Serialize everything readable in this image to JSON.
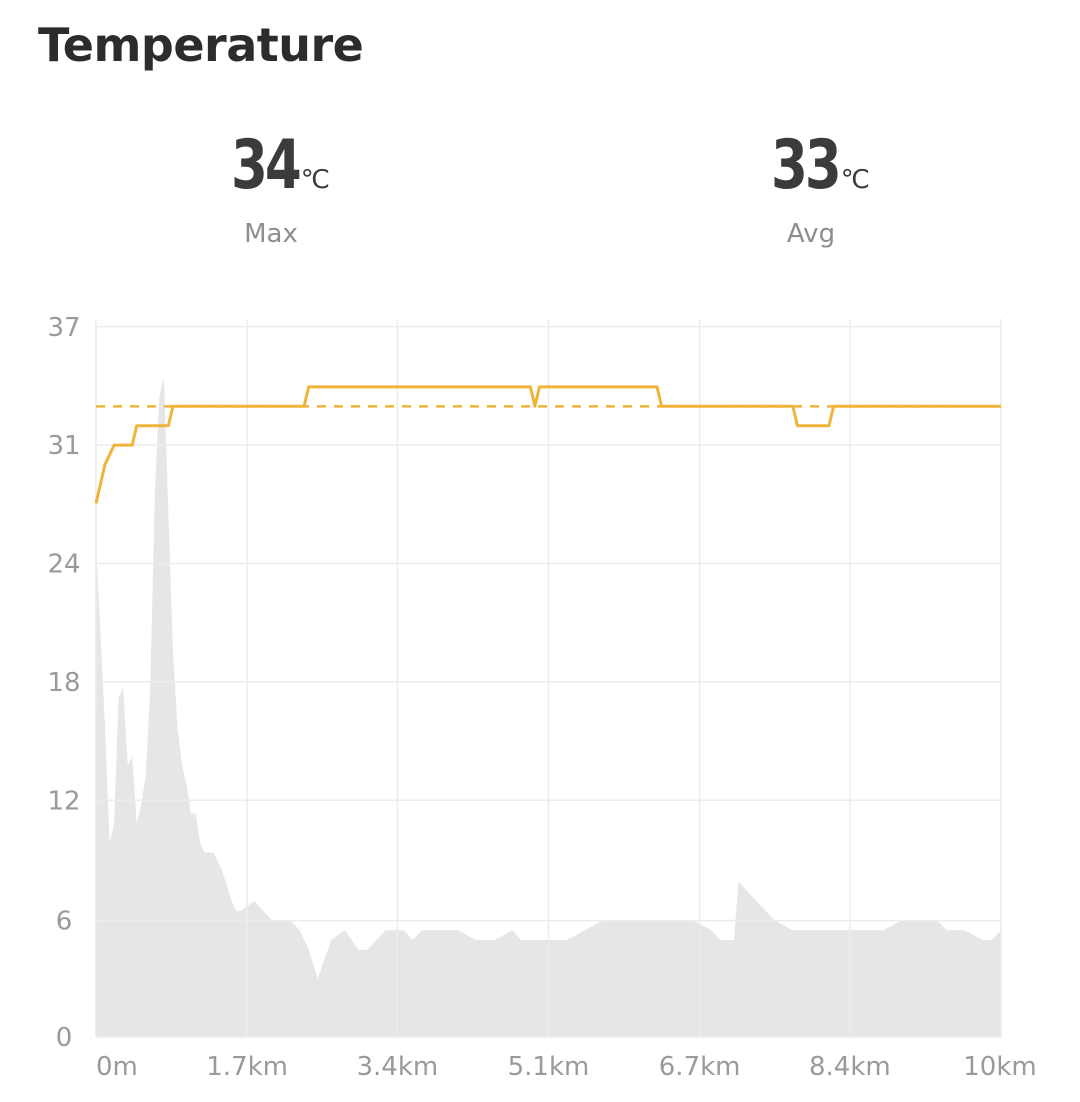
{
  "title": "Temperature",
  "stats": [
    {
      "value": "34",
      "unit": "℃",
      "label": "Max"
    },
    {
      "value": "33",
      "unit": "℃",
      "label": "Avg"
    }
  ],
  "colors": {
    "temperature_line": "#f0b43a",
    "elevation_fill": "#e6e6e6",
    "grid": "#ececec",
    "text_dark": "#3b3b3b",
    "text_muted": "#8e8e8e"
  },
  "chart_data": {
    "type": "line",
    "title": "",
    "xlabel": "",
    "ylabel": "",
    "x_range_km": [
      0,
      10
    ],
    "ylim": [
      0,
      37
    ],
    "y_ticks": [
      "0",
      "6",
      "12",
      "18",
      "24",
      "31",
      "37"
    ],
    "y_tick_values": [
      0,
      6,
      12.2,
      18.3,
      24.4,
      30.5,
      36.6
    ],
    "x_ticks": [
      "0m",
      "1.7km",
      "3.4km",
      "5.1km",
      "6.7km",
      "8.4km",
      "10km"
    ],
    "x_tick_values_km": [
      0,
      1.67,
      3.33,
      5.0,
      6.67,
      8.33,
      10
    ],
    "grid": true,
    "legend": "none",
    "average_line": {
      "value": 32.5,
      "style": "dashed"
    },
    "series": [
      {
        "kind": "line",
        "x": [
          0,
          0.05,
          0.1,
          0.15,
          0.2,
          0.4,
          0.45,
          0.8,
          0.85,
          2.3,
          2.35,
          4.8,
          4.85,
          4.9,
          6.2,
          6.25,
          7.7,
          7.75,
          8.1,
          8.15,
          10
        ],
        "values": [
          27.5,
          28.5,
          29.5,
          30,
          30.5,
          30.5,
          31.5,
          31.5,
          32.5,
          32.5,
          33.5,
          33.5,
          32.5,
          33.5,
          33.5,
          32.5,
          32.5,
          31.5,
          31.5,
          32.5,
          32.5
        ]
      },
      {
        "kind": "area",
        "x": [
          0,
          0.1,
          0.15,
          0.2,
          0.25,
          0.3,
          0.35,
          0.4,
          0.45,
          0.5,
          0.55,
          0.6,
          0.65,
          0.7,
          0.75,
          0.8,
          0.85,
          0.9,
          0.95,
          1.0,
          1.05,
          1.1,
          1.15,
          1.2,
          1.3,
          1.4,
          1.5,
          1.55,
          1.6,
          1.75,
          1.85,
          1.95,
          2.05,
          2.15,
          2.25,
          2.35,
          2.45,
          2.6,
          2.75,
          2.9,
          3.0,
          3.1,
          3.2,
          3.3,
          3.4,
          3.5,
          3.6,
          3.8,
          4.0,
          4.2,
          4.4,
          4.6,
          4.7,
          4.9,
          5.0,
          5.2,
          5.4,
          5.6,
          5.8,
          6.0,
          6.2,
          6.4,
          6.6,
          6.8,
          6.9,
          7.0,
          7.05,
          7.1,
          7.2,
          7.3,
          7.5,
          7.7,
          7.9,
          8.1,
          8.3,
          8.5,
          8.7,
          8.9,
          9.1,
          9.3,
          9.4,
          9.6,
          9.8,
          9.9,
          10
        ],
        "values": [
          25.5,
          16,
          10,
          11,
          17.5,
          18,
          14,
          14.5,
          11,
          12,
          13.5,
          18,
          28,
          33,
          34,
          27,
          20,
          16,
          14,
          13,
          11.5,
          11.5,
          10,
          9.5,
          9.5,
          8.5,
          7,
          6.5,
          6.5,
          7,
          6.5,
          6,
          6,
          6,
          5.5,
          4.5,
          3,
          5,
          5.5,
          4.5,
          4.5,
          5,
          5.5,
          5.5,
          5.5,
          5,
          5.5,
          5.5,
          5.5,
          5,
          5,
          5.5,
          5,
          5,
          5,
          5,
          5.5,
          6,
          6,
          6,
          6,
          6,
          6,
          5.5,
          5,
          5,
          5,
          8,
          7.5,
          7,
          6,
          5.5,
          5.5,
          5.5,
          5.5,
          5.5,
          5.5,
          6,
          6,
          6,
          5.5,
          5.5,
          5,
          5,
          5.5
        ]
      }
    ]
  }
}
